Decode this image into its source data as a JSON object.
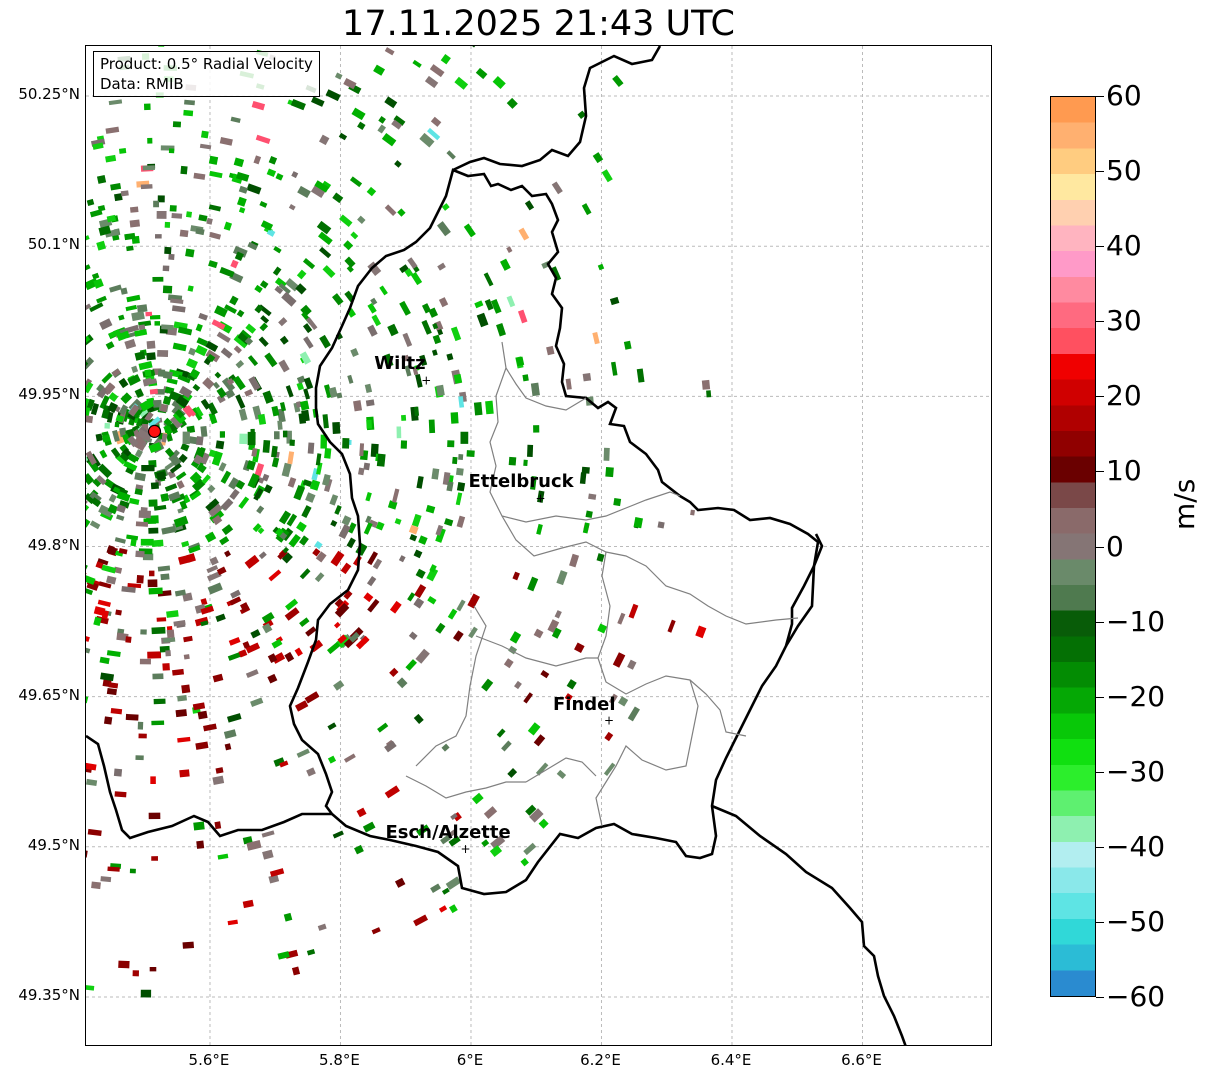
{
  "title": "17.11.2025 21:43 UTC",
  "info": {
    "product": "Product: 0.5° Radial Velocity",
    "data": "Data: RMIB"
  },
  "map": {
    "lon_range": [
      5.41,
      6.8
    ],
    "lat_range": [
      49.3,
      50.3
    ],
    "lat_ticks": [
      {
        "value": 50.25,
        "label": "50.25°N"
      },
      {
        "value": 50.1,
        "label": "50.1°N"
      },
      {
        "value": 49.95,
        "label": "49.95°N"
      },
      {
        "value": 49.8,
        "label": "49.8°N"
      },
      {
        "value": 49.65,
        "label": "49.65°N"
      },
      {
        "value": 49.5,
        "label": "49.5°N"
      },
      {
        "value": 49.35,
        "label": "49.35°N"
      }
    ],
    "lon_ticks": [
      {
        "value": 5.6,
        "label": "5.6°E"
      },
      {
        "value": 5.8,
        "label": "5.8°E"
      },
      {
        "value": 6.0,
        "label": "6°E"
      },
      {
        "value": 6.2,
        "label": "6.2°E"
      },
      {
        "value": 6.4,
        "label": "6.4°E"
      },
      {
        "value": 6.6,
        "label": "6.6°E"
      }
    ],
    "radar_site": {
      "lon": 5.515,
      "lat": 49.915
    },
    "cities": [
      {
        "name": "Wiltz",
        "lon": 5.93,
        "lat": 49.966
      },
      {
        "name": "Ettelbruck",
        "lon": 6.105,
        "lat": 49.848
      },
      {
        "name": "Findel",
        "lon": 6.21,
        "lat": 49.626
      },
      {
        "name": "Esch/Alzette",
        "lon": 5.99,
        "lat": 49.498
      }
    ],
    "border_color": "#000000",
    "canton_color": "#808080"
  },
  "colorbar": {
    "unit": "m/s",
    "ticks": [
      "60",
      "50",
      "40",
      "30",
      "20",
      "10",
      "0",
      "−10",
      "−20",
      "−30",
      "−40",
      "−50",
      "−60"
    ],
    "range": [
      -60,
      60
    ],
    "colors": [
      "#2a8bd0",
      "#2bbcd6",
      "#30d8d8",
      "#5ee4e4",
      "#8ae8ea",
      "#b2eef0",
      "#8ef0b0",
      "#5ef070",
      "#2cee2c",
      "#10e010",
      "#08c808",
      "#05a805",
      "#038c03",
      "#047004",
      "#085c08",
      "#4f7a4f",
      "#6a8a6a",
      "#857575",
      "#8a6a6a",
      "#7a4848",
      "#6a0000",
      "#900000",
      "#b00000",
      "#d00000",
      "#f00000",
      "#ff5060",
      "#ff6a80",
      "#ff8aa0",
      "#ff9ac8",
      "#ffb4c0",
      "#ffd0b0",
      "#ffe8a0",
      "#ffcc80",
      "#ffb070",
      "#ff9a50"
    ]
  }
}
